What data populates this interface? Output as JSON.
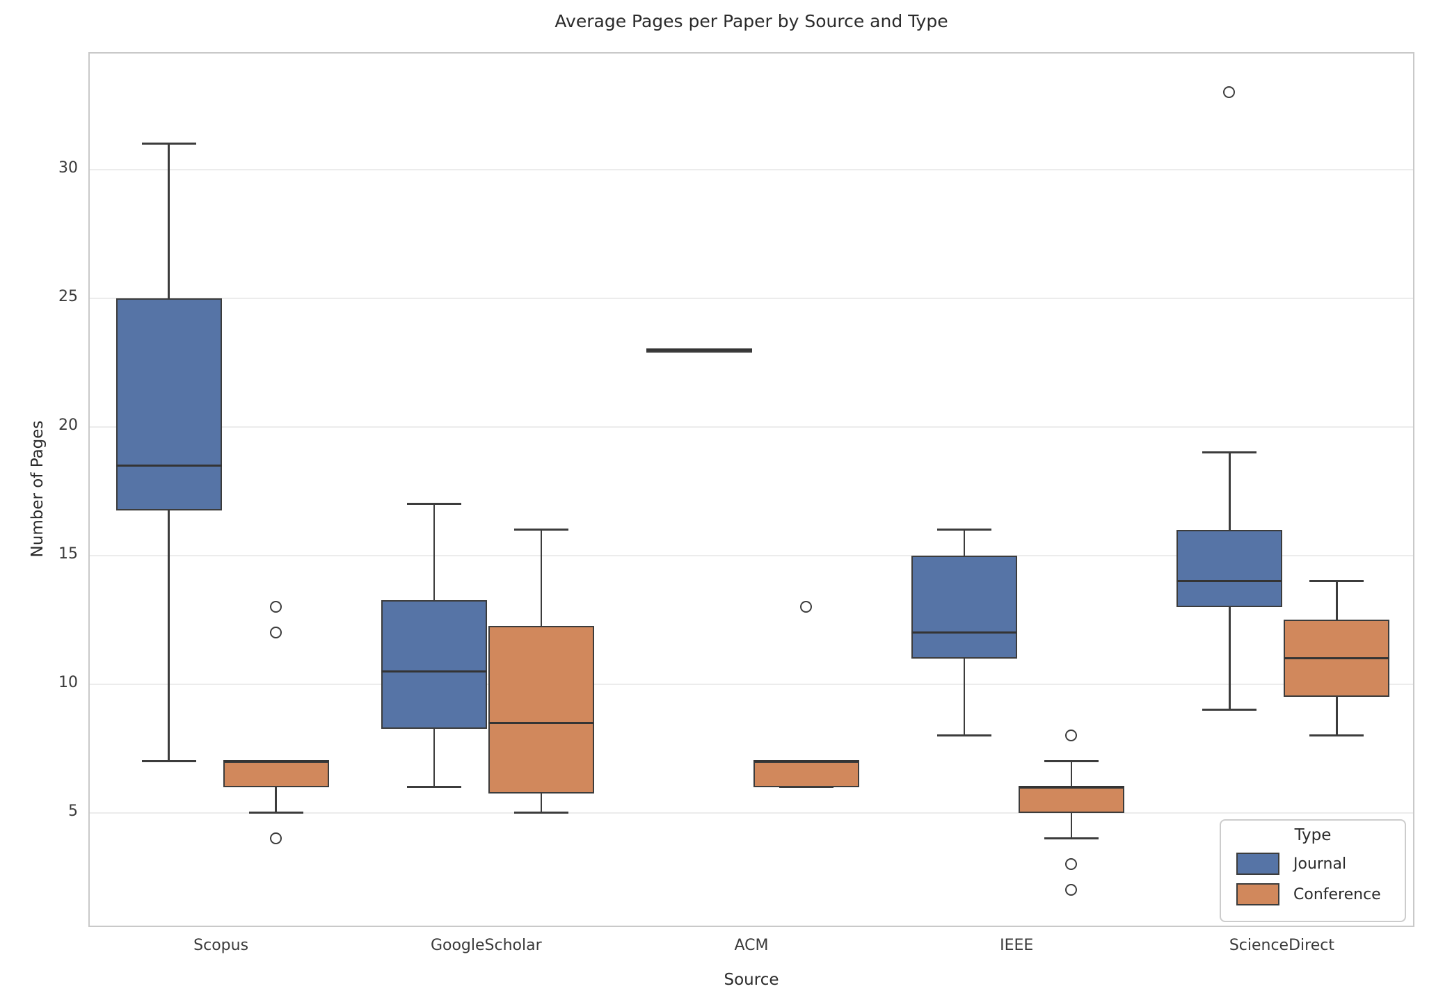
{
  "chart_data": {
    "type": "boxplot",
    "title": "Average Pages per Paper by Source and Type",
    "xlabel": "Source",
    "ylabel": "Number of Pages",
    "categories": [
      "Scopus",
      "GoogleScholar",
      "ACM",
      "IEEE",
      "ScienceDirect"
    ],
    "yticks": [
      5,
      10,
      15,
      20,
      25,
      30
    ],
    "ylim": [
      0.5,
      34.5
    ],
    "grid": "horizontal",
    "legend": {
      "title": "Type",
      "position": "lower right",
      "entries": [
        {
          "label": "Journal",
          "color": "#5674A6"
        },
        {
          "label": "Conference",
          "color": "#D1885C"
        }
      ]
    },
    "series": [
      {
        "name": "Journal",
        "color": "#5674A6",
        "boxes": [
          {
            "category": "Scopus",
            "whisker_low": 7,
            "q1": 16.75,
            "median": 18.5,
            "q3": 25,
            "whisker_high": 31,
            "outliers": []
          },
          {
            "category": "GoogleScholar",
            "whisker_low": 6,
            "q1": 8.25,
            "median": 10.5,
            "q3": 13.25,
            "whisker_high": 17,
            "outliers": []
          },
          {
            "category": "ACM",
            "whisker_low": 23,
            "q1": 23,
            "median": 23,
            "q3": 23,
            "whisker_high": 23,
            "outliers": []
          },
          {
            "category": "IEEE",
            "whisker_low": 8,
            "q1": 11,
            "median": 12,
            "q3": 15,
            "whisker_high": 16,
            "outliers": []
          },
          {
            "category": "ScienceDirect",
            "whisker_low": 9,
            "q1": 13,
            "median": 14,
            "q3": 16,
            "whisker_high": 19,
            "outliers": [
              33
            ]
          }
        ]
      },
      {
        "name": "Conference",
        "color": "#D1885C",
        "boxes": [
          {
            "category": "Scopus",
            "whisker_low": 5,
            "q1": 6,
            "median": 7,
            "q3": 7,
            "whisker_high": 7,
            "outliers": [
              13,
              12,
              4
            ]
          },
          {
            "category": "GoogleScholar",
            "whisker_low": 5,
            "q1": 5.75,
            "median": 8.5,
            "q3": 12.25,
            "whisker_high": 16,
            "outliers": []
          },
          {
            "category": "ACM",
            "whisker_low": 6,
            "q1": 6,
            "median": 7,
            "q3": 7,
            "whisker_high": 7,
            "outliers": [
              13
            ]
          },
          {
            "category": "IEEE",
            "whisker_low": 4,
            "q1": 5,
            "median": 6,
            "q3": 6,
            "whisker_high": 7,
            "outliers": [
              8,
              3,
              2
            ]
          },
          {
            "category": "ScienceDirect",
            "whisker_low": 8,
            "q1": 9.5,
            "median": 11,
            "q3": 12.5,
            "whisker_high": 14,
            "outliers": []
          }
        ]
      }
    ]
  }
}
